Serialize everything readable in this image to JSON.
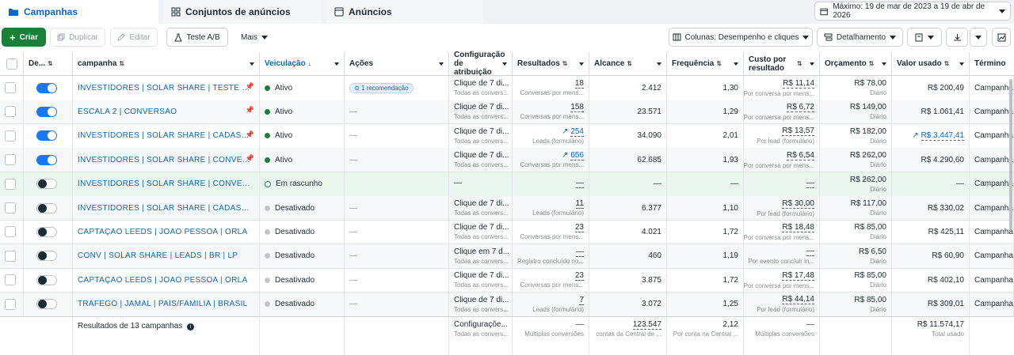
{
  "tabs": [
    {
      "label": "Campanhas"
    },
    {
      "label": "Conjuntos de anúncios"
    },
    {
      "label": "Anúncios"
    }
  ],
  "date_range": "Máximo: 19 de mar de 2023 a 19 de abr de 2026",
  "toolbar": {
    "create": "Criar",
    "duplicate": "Duplicar",
    "edit": "Editar",
    "ab_test": "Teste A/B",
    "more": "Mais",
    "columns": "Colunas: Desempenho e cliques",
    "breakdown": "Detalhamento"
  },
  "headers": {
    "delivery_short": "De...",
    "campaign": "campanha",
    "veiculacao": "Veiculação",
    "actions": "Ações",
    "attribution": "Configuração de atribuição",
    "results": "Resultados",
    "reach": "Alcance",
    "frequency": "Frequência",
    "cpr": "Custo por resultado",
    "budget": "Orçamento",
    "spent": "Valor usado",
    "end": "Término"
  },
  "rows": [
    {
      "name": "INVESTIDORES | SOLAR SHARE | TESTE DE C...",
      "toggle": "on",
      "pinned": true,
      "status": "Ativo",
      "status_type": "active",
      "action": "1 recomendação",
      "attr": "Clique de 7 di...",
      "attr_sub": "Todas as convers...",
      "results": "18",
      "results_sub": "Conversas por mens...",
      "results_trend": false,
      "reach": "2.412",
      "freq": "1,30",
      "cpr": "R$ 11,14",
      "cpr_sub": "Por conversa por mens...",
      "budget": "R$ 78,00",
      "budget_sub": "Diário",
      "spent": "R$ 200,49",
      "spent_trend": false,
      "end": "Campanha"
    },
    {
      "name": "ESCALA 2 | CONVERSÃO",
      "toggle": "on",
      "pinned": true,
      "status": "Ativo",
      "status_type": "active",
      "action": "—",
      "attr": "Clique de 7 di...",
      "attr_sub": "Todas as convers...",
      "results": "158",
      "results_sub": "Conversas por mens...",
      "results_trend": false,
      "reach": "23.571",
      "freq": "1,29",
      "cpr": "R$ 6,72",
      "cpr_sub": "Por conversa por mens...",
      "budget": "R$ 149,00",
      "budget_sub": "Diário",
      "spent": "R$ 1.061,41",
      "spent_trend": false,
      "end": "Campanha"
    },
    {
      "name": "INVESTIDORES | SOLAR SHARE | CADASTRO ...",
      "toggle": "on",
      "pinned": true,
      "status": "Ativo",
      "status_type": "active",
      "action": "—",
      "attr": "Clique de 7 di...",
      "attr_sub": "Todas as convers...",
      "results": "254",
      "results_sub": "Leads (formulário)",
      "results_trend": true,
      "reach": "34.090",
      "freq": "2,01",
      "cpr": "R$ 13,57",
      "cpr_sub": "Por lead (formulário)",
      "budget": "R$ 182,00",
      "budget_sub": "Diário",
      "spent": "R$ 3.447,41",
      "spent_trend": true,
      "end": "Campanha"
    },
    {
      "name": "INVESTIDORES | SOLAR SHARE | CONVERSÃO",
      "toggle": "on",
      "pinned": true,
      "status": "Ativo",
      "status_type": "active",
      "action": "—",
      "attr": "Clique de 7 di...",
      "attr_sub": "Todas as convers...",
      "results": "656",
      "results_sub": "Conversas por mens...",
      "results_trend": true,
      "reach": "62.685",
      "freq": "1,93",
      "cpr": "R$ 6,54",
      "cpr_sub": "Por conversa por mens...",
      "budget": "R$ 262,00",
      "budget_sub": "Diário",
      "spent": "R$ 4.290,60",
      "spent_trend": false,
      "end": "Campanha"
    },
    {
      "name": "INVESTIDORES | SOLAR SHARE | CONVERSÃO ...",
      "toggle": "off",
      "pinned": false,
      "status": "Em rascunho",
      "status_type": "draft",
      "action": "",
      "attr": "—",
      "attr_sub": "",
      "results": "—",
      "results_sub": "",
      "results_trend": false,
      "reach": "—",
      "freq": "—",
      "cpr": "—",
      "cpr_sub": "",
      "budget": "R$ 262,00",
      "budget_sub": "Diário",
      "spent": "—",
      "spent_trend": false,
      "end": "Campanha"
    },
    {
      "name": "INVESTIDORES | SOLAR SHARE | CADASTRO M...",
      "toggle": "off",
      "pinned": false,
      "status": "Desativado",
      "status_type": "off",
      "action": "—",
      "attr": "Clique de 7 di...",
      "attr_sub": "Todas as convers...",
      "results": "11",
      "results_sub": "Leads (formulário)",
      "results_trend": false,
      "reach": "6.377",
      "freq": "1,10",
      "cpr": "R$ 30,00",
      "cpr_sub": "Por lead (formulário)",
      "budget": "R$ 117,00",
      "budget_sub": "Diário",
      "spent": "R$ 330,02",
      "spent_trend": false,
      "end": "Campanha"
    },
    {
      "name": "CAPTAÇÃO LEEDS | JOAO PESSOA | ORLA",
      "toggle": "off",
      "pinned": false,
      "status": "Desativado",
      "status_type": "off",
      "action": "—",
      "attr": "Clique de 7 di...",
      "attr_sub": "Todas as convers...",
      "results": "23",
      "results_sub": "Conversas por mens...",
      "results_trend": false,
      "reach": "4.021",
      "freq": "1,72",
      "cpr": "R$ 18,48",
      "cpr_sub": "Por conversa por mens...",
      "budget": "R$ 85,00",
      "budget_sub": "Diário",
      "spent": "R$ 425,11",
      "spent_trend": false,
      "end": "Campanha"
    },
    {
      "name": "CONV | SOLAR SHARE | LEADS | BR | LP",
      "toggle": "off",
      "pinned": false,
      "status": "Desativado",
      "status_type": "off",
      "action": "—",
      "attr": "Clique em 7 d...",
      "attr_sub": "Todas as convers...",
      "results": "—",
      "results_sub": "Registro concluído no...",
      "results_trend": false,
      "reach": "460",
      "freq": "1,19",
      "cpr": "—",
      "cpr_sub": "Por evento concluir in...",
      "budget": "R$ 6,50",
      "budget_sub": "Diário",
      "spent": "R$ 60,90",
      "spent_trend": false,
      "end": "Campanha"
    },
    {
      "name": "CAPTAÇÃO LEEDS | JOAO PESSOA | ORLA",
      "toggle": "off",
      "pinned": false,
      "status": "Desativado",
      "status_type": "off",
      "action": "—",
      "attr": "Clique de 7 di...",
      "attr_sub": "Todas as convers...",
      "results": "23",
      "results_sub": "Conversas por mens...",
      "results_trend": false,
      "reach": "3.875",
      "freq": "1,72",
      "cpr": "R$ 17,48",
      "cpr_sub": "Por conversa por mens...",
      "budget": "R$ 85,00",
      "budget_sub": "Diário",
      "spent": "R$ 402,10",
      "spent_trend": false,
      "end": "Campanha"
    },
    {
      "name": "TRÁFEGO | JAMAL | PAIS/FAMÍLIA | BRASIL",
      "toggle": "off",
      "pinned": false,
      "status": "Desativado",
      "status_type": "off",
      "action": "—",
      "attr": "Clique de 7 di...",
      "attr_sub": "Todas as convers...",
      "results": "7",
      "results_sub": "Leads (formulário)",
      "results_trend": false,
      "reach": "3.072",
      "freq": "1,25",
      "cpr": "R$ 44,14",
      "cpr_sub": "Por lead (formulário)",
      "budget": "R$ 85,00",
      "budget_sub": "Diário",
      "spent": "R$ 309,01",
      "spent_trend": false,
      "end": "Campanha"
    }
  ],
  "footer": {
    "label": "Resultados de 13 campanhas",
    "attr": "Configuraçõe...",
    "attr_sub": "Todas as convers...",
    "results": "—",
    "results_sub": "Múltiplas conversões",
    "reach": "123.547",
    "reach_sub": "contas da Central de ...",
    "freq": "2,12",
    "freq_sub": "Por conta na Central ...",
    "cpr": "—",
    "cpr_sub": "Múltiplas conversões",
    "spent": "R$ 11.574,17",
    "spent_sub": "Total usado"
  },
  "colors": {
    "accent": "#0a66c2",
    "create_button": "#1a7f37",
    "toggle_on": "#1877f2",
    "draft_row": "#eaf7ef"
  }
}
